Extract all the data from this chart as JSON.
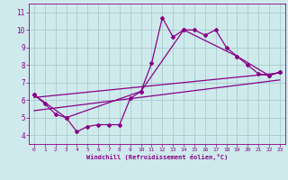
{
  "xlabel": "Windchill (Refroidissement éolien,°C)",
  "background_color": "#ceeaec",
  "line_color": "#880088",
  "grid_color": "#aacccc",
  "xlim": [
    -0.5,
    23.5
  ],
  "ylim": [
    3.5,
    11.5
  ],
  "xticks": [
    0,
    1,
    2,
    3,
    4,
    5,
    6,
    7,
    8,
    9,
    10,
    11,
    12,
    13,
    14,
    15,
    16,
    17,
    18,
    19,
    20,
    21,
    22,
    23
  ],
  "yticks": [
    4,
    5,
    6,
    7,
    8,
    9,
    10,
    11
  ],
  "series1_x": [
    0,
    1,
    2,
    3,
    4,
    5,
    6,
    7,
    8,
    9,
    10,
    11,
    12,
    13,
    14,
    15,
    16,
    17,
    18,
    19,
    20,
    21,
    22,
    23
  ],
  "series1_y": [
    6.3,
    5.8,
    5.2,
    5.0,
    4.2,
    4.5,
    4.6,
    4.6,
    4.6,
    6.1,
    6.5,
    8.1,
    10.7,
    9.6,
    10.0,
    10.0,
    9.7,
    10.0,
    9.0,
    8.5,
    8.0,
    7.5,
    7.4,
    7.6
  ],
  "series2_x": [
    0,
    3,
    10,
    14,
    19,
    22,
    23
  ],
  "series2_y": [
    6.3,
    5.0,
    6.5,
    10.0,
    8.5,
    7.4,
    7.6
  ],
  "series3_x": [
    0,
    23
  ],
  "series3_y": [
    6.15,
    7.55
  ],
  "series4_x": [
    0,
    23
  ],
  "series4_y": [
    5.4,
    7.15
  ]
}
